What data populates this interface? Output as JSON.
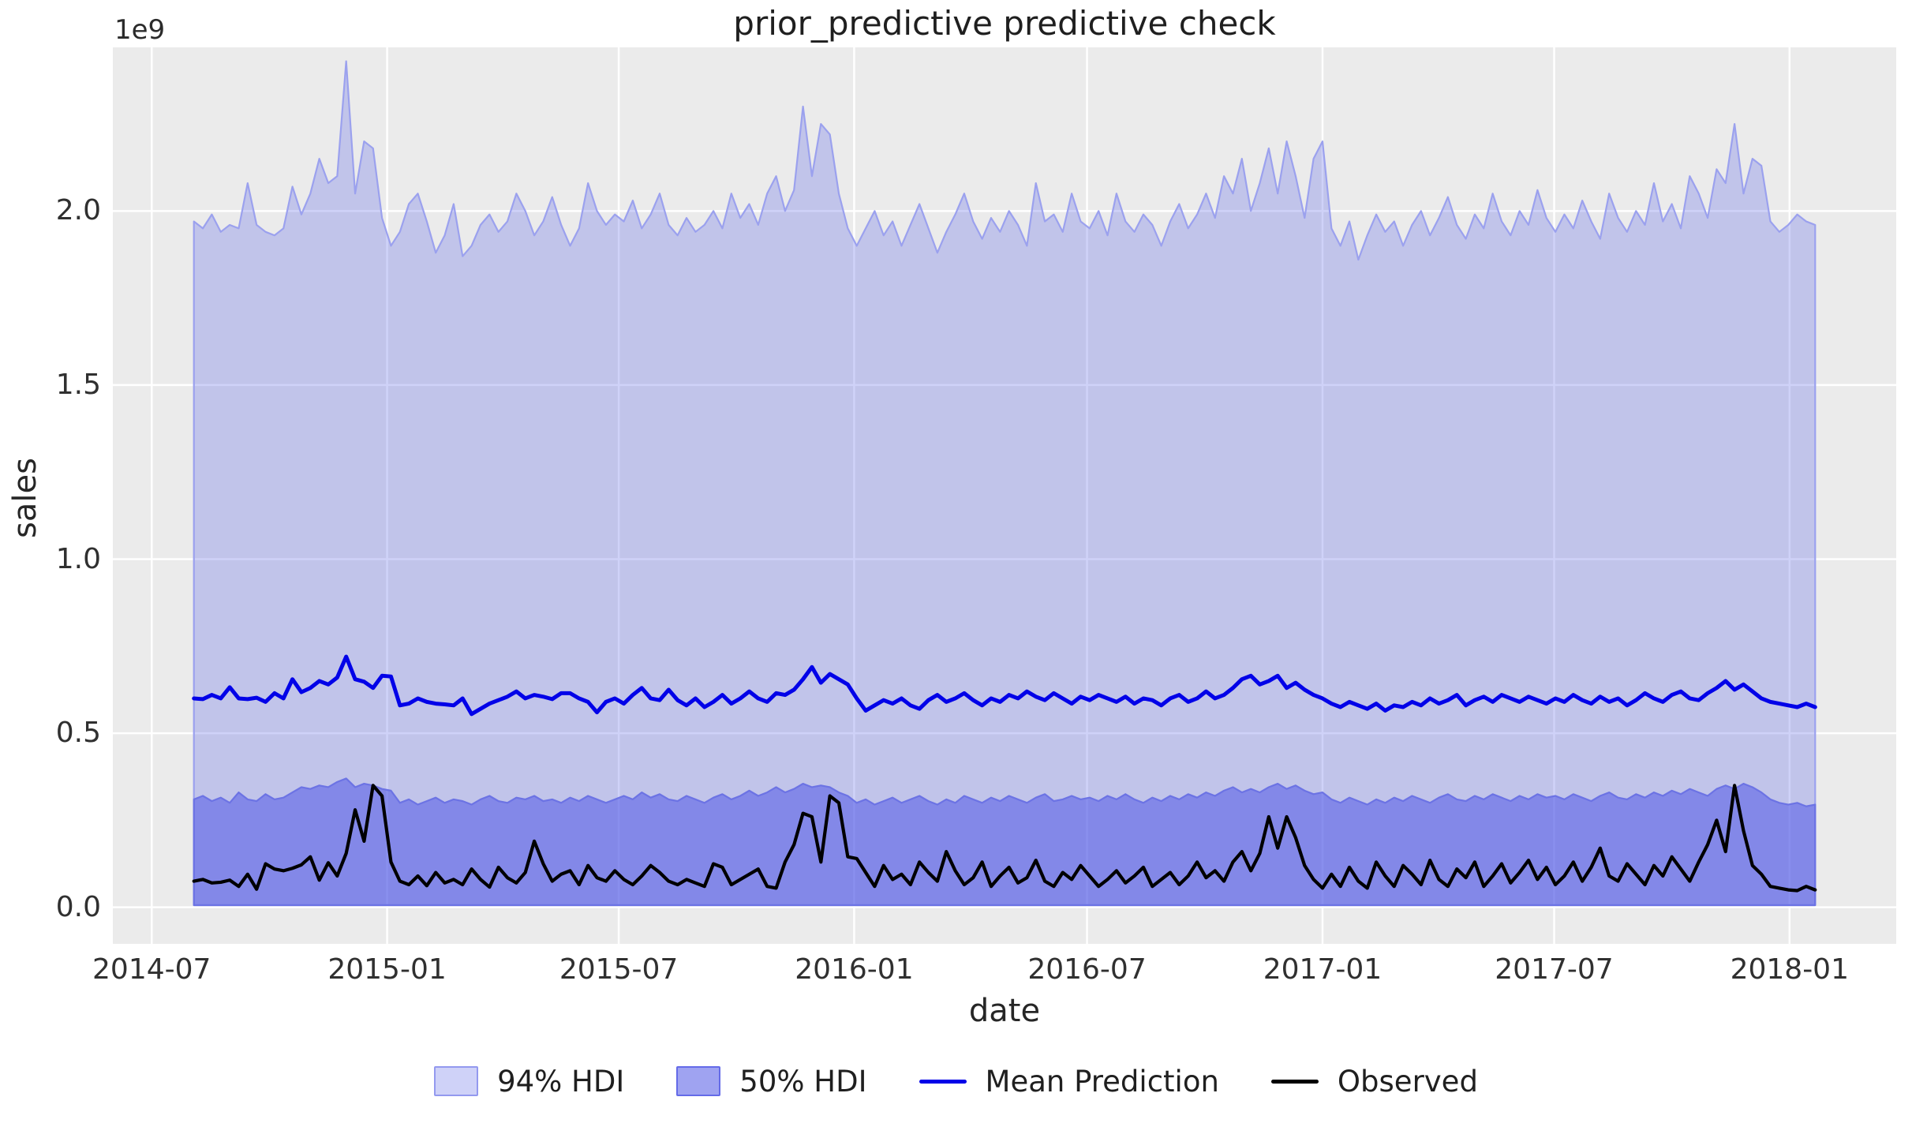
{
  "chart_data": {
    "type": "line",
    "title": "prior_predictive predictive check",
    "xlabel": "date",
    "ylabel": "sales",
    "y_offset_text": "1e9",
    "y_unit_multiplier": 1000000000,
    "grid": true,
    "legend_position": "bottom-center",
    "x_start_date": "2014-08-03",
    "x_step_days": 7,
    "n_points": 182,
    "xlim_weeks": [
      -9.05,
      190.05
    ],
    "ylim": [
      -0.105,
      2.47
    ],
    "x_ticks": [
      {
        "label": "2014-07",
        "week": -4.71
      },
      {
        "label": "2015-01",
        "week": 21.57
      },
      {
        "label": "2015-07",
        "week": 47.43
      },
      {
        "label": "2016-01",
        "week": 73.71
      },
      {
        "label": "2016-07",
        "week": 99.71
      },
      {
        "label": "2017-01",
        "week": 126.0
      },
      {
        "label": "2017-07",
        "week": 151.86
      },
      {
        "label": "2018-01",
        "week": 178.14
      }
    ],
    "y_ticks": [
      {
        "label": "0.0",
        "value": 0.0
      },
      {
        "label": "0.5",
        "value": 0.5
      },
      {
        "label": "1.0",
        "value": 1.0
      },
      {
        "label": "1.5",
        "value": 1.5
      },
      {
        "label": "2.0",
        "value": 2.0
      }
    ],
    "colors": {
      "figure_background": "#ffffff",
      "axes_background": "#ebebeb",
      "grid": "#ffffff",
      "band94_fill": "rgba(107,115,232,0.32)",
      "band94_edge": "#9ba1ee",
      "band94_swatch_border": "rgba(107,115,232,0.6)",
      "band50_fill": "rgba(80,88,230,0.55)",
      "band50_edge": "#6c73e4",
      "band50_swatch_border": "rgba(80,88,230,0.75)",
      "mean_line": "#0202e8",
      "observed_line": "#000000",
      "text": "#2b2b2b"
    },
    "legend": [
      {
        "label": "94% HDI",
        "kind": "patch",
        "series": "hdi94"
      },
      {
        "label": "50% HDI",
        "kind": "patch",
        "series": "hdi50"
      },
      {
        "label": "Mean Prediction",
        "kind": "line",
        "series": "mean"
      },
      {
        "label": "Observed",
        "kind": "line",
        "series": "observed"
      }
    ],
    "series": {
      "hdi94": {
        "name": "94% HDI",
        "kind": "band",
        "lower_const": 0.006,
        "upper": [
          1.97,
          1.95,
          1.99,
          1.94,
          1.96,
          1.95,
          2.08,
          1.96,
          1.94,
          1.93,
          1.95,
          2.07,
          1.99,
          2.05,
          2.15,
          2.08,
          2.1,
          2.43,
          2.05,
          2.2,
          2.18,
          1.98,
          1.9,
          1.94,
          2.02,
          2.05,
          1.97,
          1.88,
          1.93,
          2.02,
          1.87,
          1.9,
          1.96,
          1.99,
          1.94,
          1.97,
          2.05,
          2.0,
          1.93,
          1.97,
          2.04,
          1.96,
          1.9,
          1.95,
          2.08,
          2.0,
          1.96,
          1.99,
          1.97,
          2.03,
          1.95,
          1.99,
          2.05,
          1.96,
          1.93,
          1.98,
          1.94,
          1.96,
          2.0,
          1.95,
          2.05,
          1.98,
          2.02,
          1.96,
          2.05,
          2.1,
          2.0,
          2.06,
          2.3,
          2.1,
          2.25,
          2.22,
          2.05,
          1.95,
          1.9,
          1.95,
          2.0,
          1.93,
          1.97,
          1.9,
          1.96,
          2.02,
          1.95,
          1.88,
          1.94,
          1.99,
          2.05,
          1.97,
          1.92,
          1.98,
          1.94,
          2.0,
          1.96,
          1.9,
          2.08,
          1.97,
          1.99,
          1.94,
          2.05,
          1.97,
          1.95,
          2.0,
          1.93,
          2.05,
          1.97,
          1.94,
          1.99,
          1.96,
          1.9,
          1.97,
          2.02,
          1.95,
          1.99,
          2.05,
          1.98,
          2.1,
          2.05,
          2.15,
          2.0,
          2.08,
          2.18,
          2.05,
          2.2,
          2.1,
          1.98,
          2.15,
          2.2,
          1.95,
          1.9,
          1.97,
          1.86,
          1.93,
          1.99,
          1.94,
          1.97,
          1.9,
          1.96,
          2.0,
          1.93,
          1.98,
          2.04,
          1.96,
          1.92,
          1.99,
          1.95,
          2.05,
          1.97,
          1.93,
          2.0,
          1.96,
          2.06,
          1.98,
          1.94,
          1.99,
          1.95,
          2.03,
          1.97,
          1.92,
          2.05,
          1.98,
          1.94,
          2.0,
          1.96,
          2.08,
          1.97,
          2.02,
          1.95,
          2.1,
          2.05,
          1.98,
          2.12,
          2.08,
          2.25,
          2.05,
          2.15,
          2.13,
          1.97,
          1.94,
          1.96,
          1.99,
          1.97,
          1.96
        ]
      },
      "hdi50": {
        "name": "50% HDI",
        "kind": "band",
        "lower_const": 0.006,
        "upper": [
          0.31,
          0.32,
          0.305,
          0.315,
          0.3,
          0.33,
          0.31,
          0.305,
          0.325,
          0.31,
          0.315,
          0.33,
          0.345,
          0.34,
          0.35,
          0.345,
          0.36,
          0.37,
          0.345,
          0.355,
          0.35,
          0.34,
          0.335,
          0.3,
          0.31,
          0.295,
          0.305,
          0.315,
          0.3,
          0.31,
          0.305,
          0.295,
          0.31,
          0.32,
          0.305,
          0.3,
          0.315,
          0.31,
          0.32,
          0.305,
          0.31,
          0.3,
          0.315,
          0.305,
          0.32,
          0.31,
          0.3,
          0.31,
          0.32,
          0.31,
          0.33,
          0.315,
          0.325,
          0.31,
          0.305,
          0.32,
          0.31,
          0.3,
          0.315,
          0.325,
          0.31,
          0.32,
          0.335,
          0.32,
          0.33,
          0.345,
          0.33,
          0.34,
          0.355,
          0.345,
          0.35,
          0.345,
          0.33,
          0.32,
          0.3,
          0.31,
          0.295,
          0.305,
          0.315,
          0.3,
          0.31,
          0.32,
          0.305,
          0.295,
          0.31,
          0.3,
          0.32,
          0.31,
          0.3,
          0.315,
          0.305,
          0.32,
          0.31,
          0.3,
          0.315,
          0.325,
          0.305,
          0.31,
          0.32,
          0.31,
          0.315,
          0.305,
          0.32,
          0.31,
          0.325,
          0.31,
          0.3,
          0.315,
          0.305,
          0.32,
          0.31,
          0.325,
          0.315,
          0.33,
          0.32,
          0.335,
          0.345,
          0.33,
          0.34,
          0.33,
          0.345,
          0.355,
          0.34,
          0.35,
          0.335,
          0.325,
          0.33,
          0.31,
          0.3,
          0.315,
          0.305,
          0.295,
          0.31,
          0.3,
          0.315,
          0.305,
          0.32,
          0.31,
          0.3,
          0.315,
          0.325,
          0.31,
          0.305,
          0.32,
          0.31,
          0.325,
          0.315,
          0.305,
          0.32,
          0.31,
          0.325,
          0.315,
          0.32,
          0.31,
          0.325,
          0.315,
          0.305,
          0.32,
          0.33,
          0.315,
          0.31,
          0.325,
          0.315,
          0.33,
          0.32,
          0.335,
          0.325,
          0.34,
          0.33,
          0.32,
          0.34,
          0.35,
          0.34,
          0.355,
          0.345,
          0.33,
          0.31,
          0.3,
          0.295,
          0.3,
          0.29,
          0.295
        ]
      },
      "mean": {
        "name": "Mean Prediction",
        "kind": "line",
        "values": [
          0.6,
          0.598,
          0.61,
          0.6,
          0.632,
          0.6,
          0.598,
          0.602,
          0.59,
          0.615,
          0.6,
          0.655,
          0.618,
          0.63,
          0.65,
          0.64,
          0.66,
          0.72,
          0.655,
          0.648,
          0.63,
          0.665,
          0.663,
          0.58,
          0.585,
          0.6,
          0.59,
          0.585,
          0.583,
          0.58,
          0.6,
          0.555,
          0.57,
          0.585,
          0.595,
          0.605,
          0.62,
          0.6,
          0.61,
          0.605,
          0.598,
          0.615,
          0.615,
          0.6,
          0.59,
          0.56,
          0.59,
          0.6,
          0.585,
          0.61,
          0.63,
          0.6,
          0.595,
          0.625,
          0.595,
          0.58,
          0.6,
          0.575,
          0.59,
          0.61,
          0.585,
          0.6,
          0.62,
          0.6,
          0.59,
          0.615,
          0.61,
          0.625,
          0.655,
          0.69,
          0.645,
          0.67,
          0.655,
          0.64,
          0.6,
          0.565,
          0.58,
          0.595,
          0.585,
          0.6,
          0.58,
          0.57,
          0.595,
          0.61,
          0.59,
          0.6,
          0.615,
          0.595,
          0.58,
          0.6,
          0.59,
          0.61,
          0.6,
          0.62,
          0.605,
          0.595,
          0.615,
          0.6,
          0.585,
          0.605,
          0.595,
          0.61,
          0.6,
          0.59,
          0.605,
          0.585,
          0.6,
          0.595,
          0.58,
          0.6,
          0.61,
          0.59,
          0.6,
          0.62,
          0.6,
          0.61,
          0.63,
          0.655,
          0.665,
          0.64,
          0.65,
          0.665,
          0.63,
          0.645,
          0.625,
          0.61,
          0.6,
          0.585,
          0.575,
          0.59,
          0.58,
          0.57,
          0.585,
          0.565,
          0.58,
          0.575,
          0.59,
          0.58,
          0.6,
          0.585,
          0.595,
          0.61,
          0.58,
          0.595,
          0.605,
          0.59,
          0.61,
          0.6,
          0.59,
          0.605,
          0.595,
          0.585,
          0.6,
          0.59,
          0.61,
          0.595,
          0.585,
          0.605,
          0.59,
          0.6,
          0.58,
          0.595,
          0.615,
          0.6,
          0.59,
          0.61,
          0.62,
          0.6,
          0.595,
          0.615,
          0.63,
          0.65,
          0.625,
          0.64,
          0.62,
          0.6,
          0.59,
          0.585,
          0.58,
          0.575,
          0.585,
          0.575
        ]
      },
      "observed": {
        "name": "Observed",
        "kind": "line",
        "values": [
          0.075,
          0.08,
          0.07,
          0.072,
          0.078,
          0.06,
          0.095,
          0.052,
          0.125,
          0.11,
          0.105,
          0.112,
          0.122,
          0.145,
          0.078,
          0.128,
          0.09,
          0.155,
          0.28,
          0.19,
          0.35,
          0.32,
          0.13,
          0.075,
          0.065,
          0.09,
          0.062,
          0.1,
          0.07,
          0.08,
          0.065,
          0.11,
          0.08,
          0.058,
          0.115,
          0.085,
          0.07,
          0.1,
          0.19,
          0.125,
          0.075,
          0.095,
          0.105,
          0.065,
          0.12,
          0.085,
          0.075,
          0.105,
          0.08,
          0.065,
          0.09,
          0.12,
          0.1,
          0.075,
          0.065,
          0.08,
          0.07,
          0.06,
          0.125,
          0.115,
          0.065,
          0.08,
          0.095,
          0.11,
          0.06,
          0.055,
          0.13,
          0.18,
          0.27,
          0.26,
          0.13,
          0.32,
          0.3,
          0.145,
          0.14,
          0.1,
          0.06,
          0.12,
          0.08,
          0.095,
          0.065,
          0.13,
          0.1,
          0.075,
          0.16,
          0.105,
          0.065,
          0.085,
          0.13,
          0.06,
          0.09,
          0.115,
          0.07,
          0.085,
          0.135,
          0.075,
          0.06,
          0.1,
          0.08,
          0.12,
          0.09,
          0.06,
          0.08,
          0.105,
          0.07,
          0.09,
          0.115,
          0.06,
          0.08,
          0.1,
          0.065,
          0.09,
          0.13,
          0.085,
          0.105,
          0.075,
          0.13,
          0.16,
          0.105,
          0.155,
          0.26,
          0.17,
          0.26,
          0.2,
          0.12,
          0.08,
          0.055,
          0.095,
          0.06,
          0.115,
          0.075,
          0.055,
          0.13,
          0.09,
          0.06,
          0.12,
          0.095,
          0.065,
          0.135,
          0.08,
          0.06,
          0.11,
          0.085,
          0.13,
          0.06,
          0.09,
          0.125,
          0.07,
          0.1,
          0.135,
          0.08,
          0.115,
          0.065,
          0.09,
          0.13,
          0.075,
          0.115,
          0.17,
          0.09,
          0.075,
          0.125,
          0.095,
          0.065,
          0.12,
          0.09,
          0.145,
          0.11,
          0.075,
          0.13,
          0.18,
          0.25,
          0.16,
          0.35,
          0.22,
          0.12,
          0.095,
          0.06,
          0.055,
          0.05,
          0.048,
          0.06,
          0.05
        ]
      }
    }
  }
}
